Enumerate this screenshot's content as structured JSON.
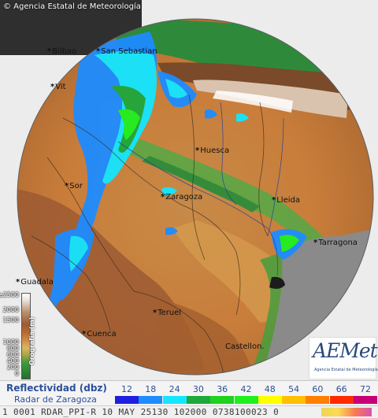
{
  "map": {
    "copyright": "© Agencia Estatal de Meteorología",
    "cities": [
      {
        "key": "bilbao",
        "label": "Bilbao"
      },
      {
        "key": "san-sebastian",
        "label": "San Sebastian"
      },
      {
        "key": "vitoria",
        "label": "Vit"
      },
      {
        "key": "soria",
        "label": "Sor"
      },
      {
        "key": "huesca",
        "label": "Huesca"
      },
      {
        "key": "zaragoza",
        "label": "Zaragoza"
      },
      {
        "key": "lleida",
        "label": "Lleida"
      },
      {
        "key": "tarragona",
        "label": "Tarragona"
      },
      {
        "key": "guadalajara",
        "label": "Guadala"
      },
      {
        "key": "teruel",
        "label": "Teruel"
      },
      {
        "key": "cuenca",
        "label": "Cuenca"
      },
      {
        "key": "castellon",
        "label": "Castellon."
      }
    ],
    "elevation_legend": {
      "title": "Orografía (m)",
      "labels": [
        "≥2500",
        "2000",
        "1500",
        "1000",
        "800",
        "600",
        "400",
        "200",
        "0"
      ]
    },
    "logo": {
      "word": "AEMet",
      "subtitle": "Agencia Estatal de Meteorología"
    }
  },
  "legend": {
    "title": "Reflectividad (dbz)",
    "subtitle": "Radar de Zaragoza",
    "levels": [
      {
        "label": "12",
        "color": "#1f1fe0"
      },
      {
        "label": "18",
        "color": "#1e8cff"
      },
      {
        "label": "24",
        "color": "#14e6ff"
      },
      {
        "label": "30",
        "color": "#1fa83c"
      },
      {
        "label": "36",
        "color": "#1fd21f"
      },
      {
        "label": "42",
        "color": "#1ff01f"
      },
      {
        "label": "48",
        "color": "#ffff00"
      },
      {
        "label": "54",
        "color": "#ffc000"
      },
      {
        "label": "60",
        "color": "#ff8000"
      },
      {
        "label": "66",
        "color": "#ff2a00"
      },
      {
        "label": "72",
        "color": "#c80078"
      }
    ]
  },
  "status_bar": "1 0001  RDAR_PPI-R  10 MAY 25130  102000  0738100023 0"
}
